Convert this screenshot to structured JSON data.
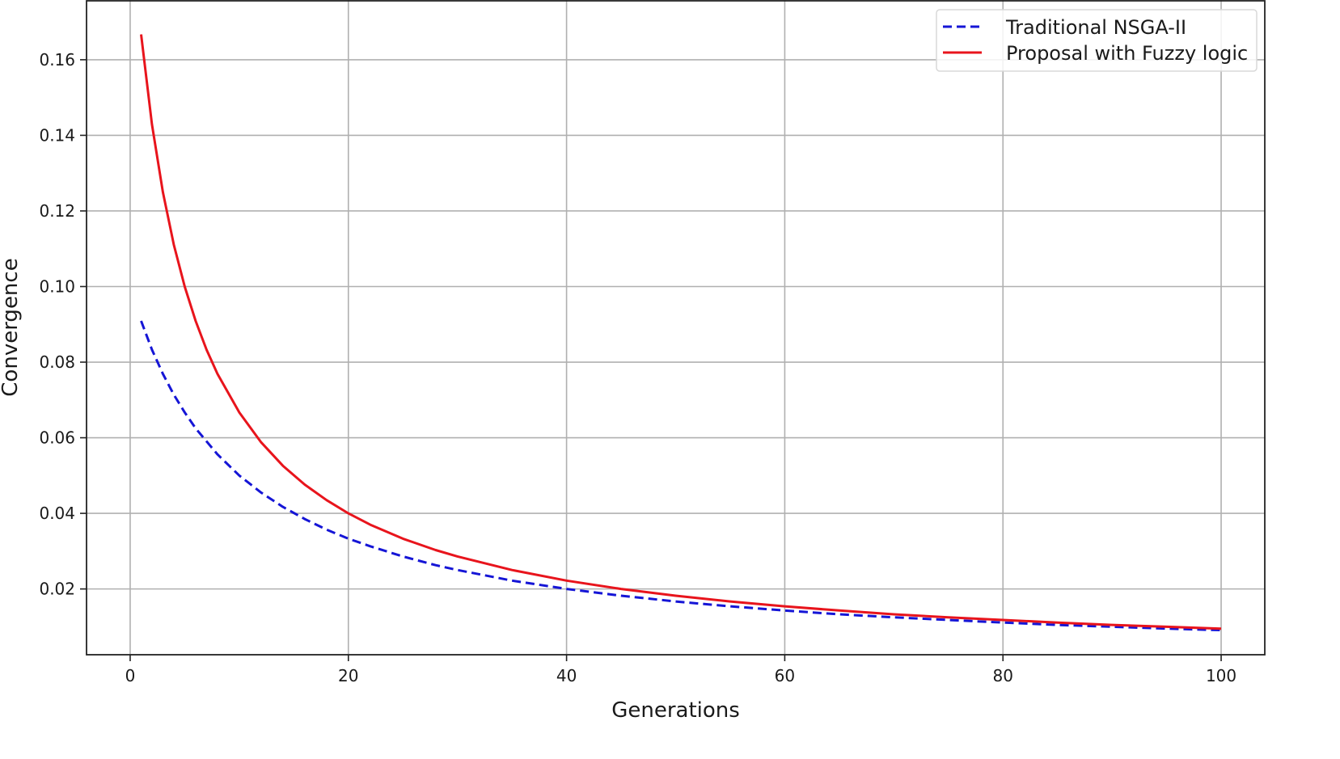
{
  "chart_data": {
    "type": "line",
    "title": "",
    "xlabel": "Generations",
    "ylabel": "Convergence",
    "xlim": [
      -4,
      104
    ],
    "ylim": [
      0.0026,
      0.1758
    ],
    "x_ticks": [
      0,
      20,
      40,
      60,
      80,
      100
    ],
    "y_ticks": [
      0.02,
      0.04,
      0.06,
      0.08,
      0.1,
      0.12,
      0.14,
      0.16
    ],
    "y_tick_labels": [
      "0.02",
      "0.04",
      "0.06",
      "0.08",
      "0.10",
      "0.12",
      "0.14",
      "0.16"
    ],
    "grid": true,
    "legend_position": "top-right",
    "series": [
      {
        "name": "Traditional NSGA-II",
        "color": "#1515d6",
        "style": "dashed",
        "x": [
          1,
          2,
          3,
          4,
          5,
          6,
          8,
          10,
          12,
          14,
          16,
          18,
          20,
          22,
          25,
          28,
          30,
          35,
          40,
          45,
          50,
          55,
          60,
          65,
          70,
          75,
          80,
          85,
          90,
          95,
          100
        ],
        "y": [
          0.0909,
          0.0833,
          0.0769,
          0.0714,
          0.0667,
          0.0625,
          0.0556,
          0.05,
          0.0455,
          0.0417,
          0.0385,
          0.0357,
          0.0333,
          0.0313,
          0.0286,
          0.0263,
          0.025,
          0.0222,
          0.02,
          0.0182,
          0.0167,
          0.0154,
          0.0143,
          0.0133,
          0.0125,
          0.0118,
          0.0111,
          0.0105,
          0.01,
          0.0095,
          0.0091
        ]
      },
      {
        "name": "Proposal with Fuzzy logic",
        "color": "#e8141c",
        "style": "solid",
        "x": [
          1,
          2,
          3,
          4,
          5,
          6,
          7,
          8,
          10,
          12,
          14,
          16,
          18,
          20,
          22,
          25,
          28,
          30,
          35,
          40,
          45,
          50,
          55,
          60,
          65,
          70,
          75,
          80,
          85,
          90,
          95,
          100
        ],
        "y": [
          0.1667,
          0.1429,
          0.125,
          0.1111,
          0.1,
          0.0909,
          0.0833,
          0.0769,
          0.0667,
          0.0588,
          0.0526,
          0.0476,
          0.0435,
          0.04,
          0.037,
          0.0333,
          0.0303,
          0.0286,
          0.025,
          0.0222,
          0.02,
          0.0182,
          0.0167,
          0.0154,
          0.0143,
          0.0133,
          0.0125,
          0.0118,
          0.0111,
          0.0105,
          0.01,
          0.0095
        ]
      }
    ]
  }
}
